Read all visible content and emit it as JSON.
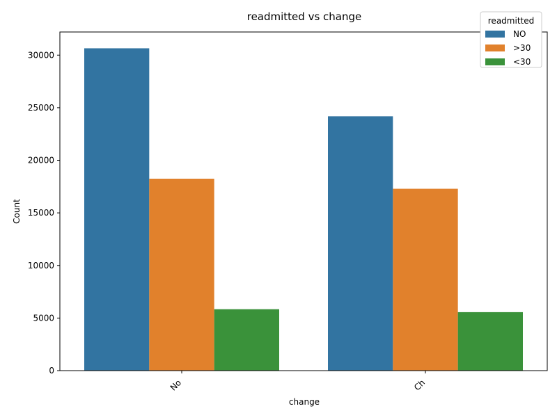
{
  "chart_data": {
    "type": "bar",
    "title": "readmitted vs change",
    "xlabel": "change",
    "ylabel": "Count",
    "categories": [
      "No",
      "Ch"
    ],
    "series": [
      {
        "name": "NO",
        "color": "#3274a1",
        "values": [
          30650,
          24180
        ]
      },
      {
        "name": ">30",
        "color": "#e1812c",
        "values": [
          18250,
          17290
        ]
      },
      {
        "name": "<30",
        "color": "#3a923a",
        "values": [
          5840,
          5560
        ]
      }
    ],
    "yticks": [
      0,
      5000,
      10000,
      15000,
      20000,
      25000,
      30000
    ],
    "ylim": [
      0,
      32200
    ],
    "legend": {
      "title": "readmitted",
      "position": "top-right"
    },
    "grid": false
  }
}
